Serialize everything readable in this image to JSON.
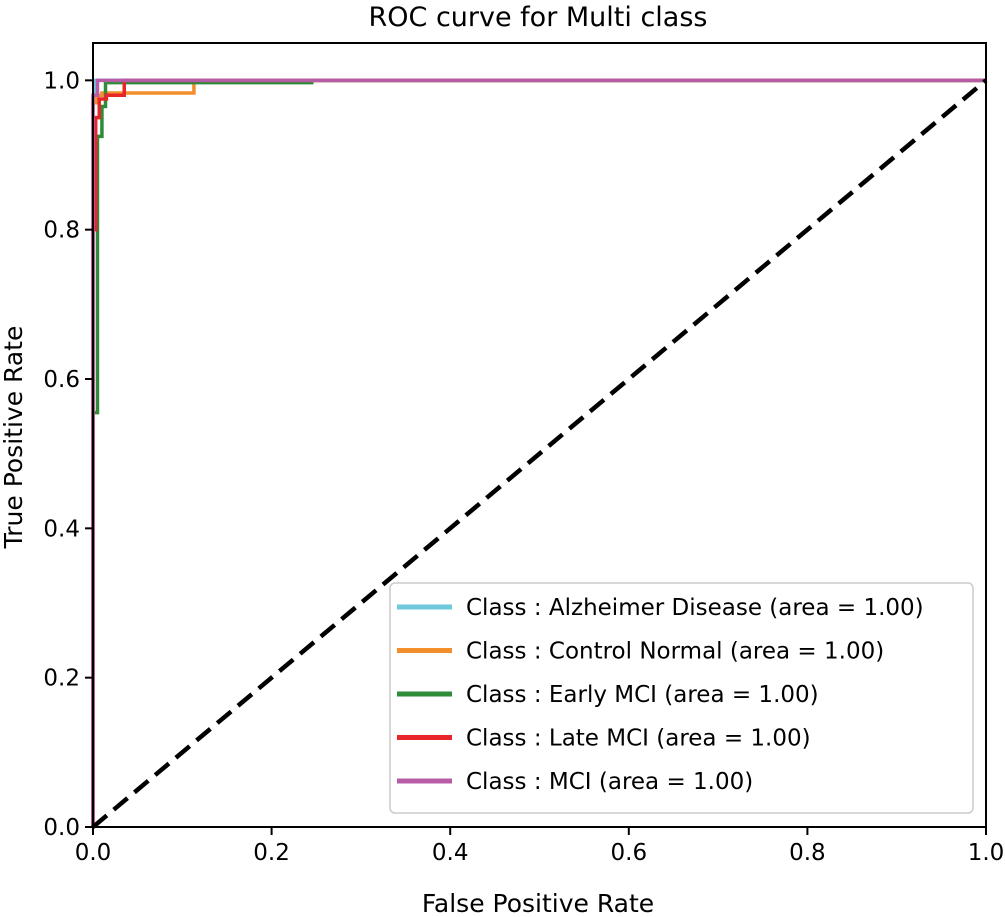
{
  "chart_data": {
    "type": "line",
    "title": "ROC curve for Multi class",
    "xlabel": "False Positive Rate",
    "ylabel": "True Positive Rate",
    "xlim": [
      0.0,
      1.0
    ],
    "ylim": [
      0.0,
      1.05
    ],
    "xticks": [
      0.0,
      0.2,
      0.4,
      0.6,
      0.8,
      1.0
    ],
    "yticks": [
      0.0,
      0.2,
      0.4,
      0.6,
      0.8,
      1.0
    ],
    "xtick_labels": [
      "0.0",
      "0.2",
      "0.4",
      "0.6",
      "0.8",
      "1.0"
    ],
    "ytick_labels": [
      "0.0",
      "0.2",
      "0.4",
      "0.6",
      "0.8",
      "1.0"
    ],
    "grid": false,
    "legend_position": "lower-right",
    "series": [
      {
        "name": "Alzheimer Disease",
        "label": "Class : Alzheimer Disease (area = 1.00)",
        "color": "#6ec9dc",
        "x": [
          0.0,
          0.0,
          0.003,
          0.003,
          1.0
        ],
        "y": [
          0.0,
          0.97,
          0.97,
          1.0,
          1.0
        ]
      },
      {
        "name": "Control Normal",
        "label": "Class : Control Normal (area = 1.00)",
        "color": "#f28e2b",
        "x": [
          0.0,
          0.0,
          0.004,
          0.004,
          0.01,
          0.01,
          0.113,
          0.113,
          1.0
        ],
        "y": [
          0.0,
          0.97,
          0.97,
          0.98,
          0.98,
          0.983,
          0.983,
          1.0,
          1.0
        ]
      },
      {
        "name": "Early MCI",
        "label": "Class : Early MCI (area = 1.00)",
        "color": "#2e8b3a",
        "x": [
          0.0,
          0.0,
          0.005,
          0.005,
          0.01,
          0.01,
          0.014,
          0.014,
          0.245,
          0.245,
          1.0
        ],
        "y": [
          0.0,
          0.555,
          0.555,
          0.925,
          0.925,
          0.965,
          0.965,
          0.997,
          0.997,
          1.0,
          1.0
        ]
      },
      {
        "name": "Late MCI",
        "label": "Class : Late MCI (area = 1.00)",
        "color": "#e8262a",
        "x": [
          0.0,
          0.0,
          0.003,
          0.003,
          0.007,
          0.007,
          0.015,
          0.015,
          0.035,
          0.035,
          1.0
        ],
        "y": [
          0.0,
          0.8,
          0.8,
          0.95,
          0.95,
          0.975,
          0.975,
          0.98,
          0.98,
          1.0,
          1.0
        ]
      },
      {
        "name": "MCI",
        "label": "Class : MCI (area = 1.00)",
        "color": "#b85ca8",
        "x": [
          0.0,
          0.0,
          0.005,
          0.005,
          1.0
        ],
        "y": [
          0.0,
          0.98,
          0.98,
          1.0,
          1.0
        ]
      }
    ],
    "reference_line": {
      "x": [
        0.0,
        1.0
      ],
      "y": [
        0.0,
        1.0
      ],
      "color": "#000000",
      "style": "dashed"
    }
  }
}
